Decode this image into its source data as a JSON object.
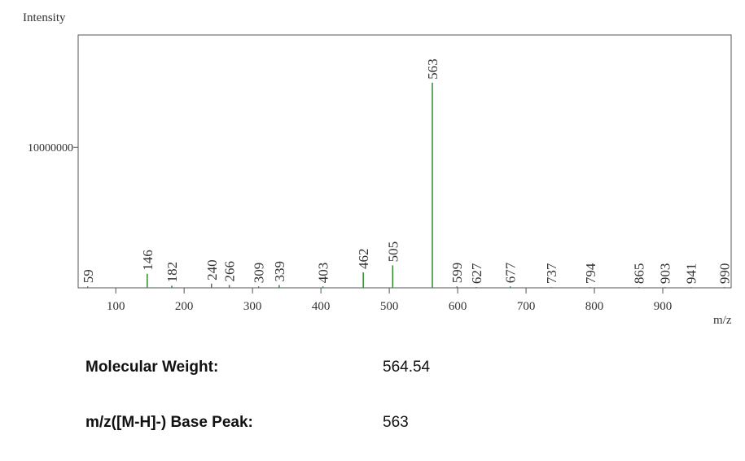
{
  "chart_data": {
    "type": "bar",
    "x_label": "m/z",
    "y_label": "Intensity",
    "x": [
      59,
      146,
      182,
      240,
      266,
      309,
      339,
      403,
      462,
      505,
      563,
      599,
      627,
      677,
      737,
      794,
      865,
      903,
      941,
      990
    ],
    "values": [
      100000,
      1000000,
      150000,
      300000,
      200000,
      100000,
      200000,
      100000,
      1100000,
      1600000,
      14600000,
      100000,
      50000,
      100000,
      50000,
      50000,
      50000,
      50000,
      50000,
      50000
    ],
    "color": "#2e8b2e",
    "xlim": [
      45,
      1000
    ],
    "xticks": [
      100,
      200,
      300,
      400,
      500,
      600,
      700,
      800,
      900
    ],
    "ylim": [
      0,
      18000000
    ],
    "yticks": [
      10000000
    ]
  },
  "info": {
    "rows": [
      [
        "Molecular Weight:",
        564.54
      ],
      [
        "m/z([M-H]-) Base Peak:",
        563
      ]
    ]
  }
}
